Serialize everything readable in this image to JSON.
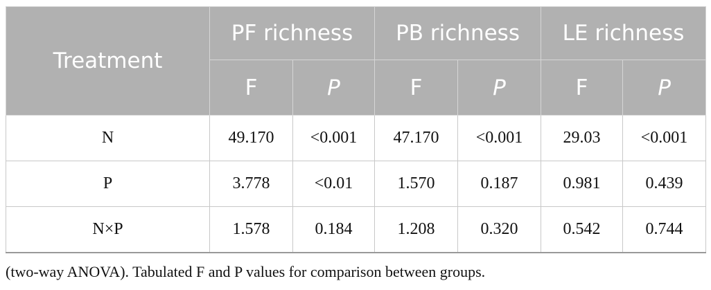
{
  "table": {
    "corner": "Treatment",
    "groups": [
      {
        "name": "PF richness",
        "sub": [
          "F",
          "P"
        ]
      },
      {
        "name": "PB richness",
        "sub": [
          "F",
          "P"
        ]
      },
      {
        "name": "LE richness",
        "sub": [
          "F",
          "P"
        ]
      }
    ],
    "rows": [
      [
        "N",
        "49.170",
        "<0.001",
        "47.170",
        "<0.001",
        "29.03",
        "<0.001"
      ],
      [
        "P",
        "3.778",
        "<0.01",
        "1.570",
        "0.187",
        "0.981",
        "0.439"
      ],
      [
        "N×P",
        "1.578",
        "0.184",
        "1.208",
        "0.320",
        "0.542",
        "0.744"
      ]
    ]
  },
  "caption": "(two-way ANOVA). Tabulated F and P values for comparison between groups."
}
